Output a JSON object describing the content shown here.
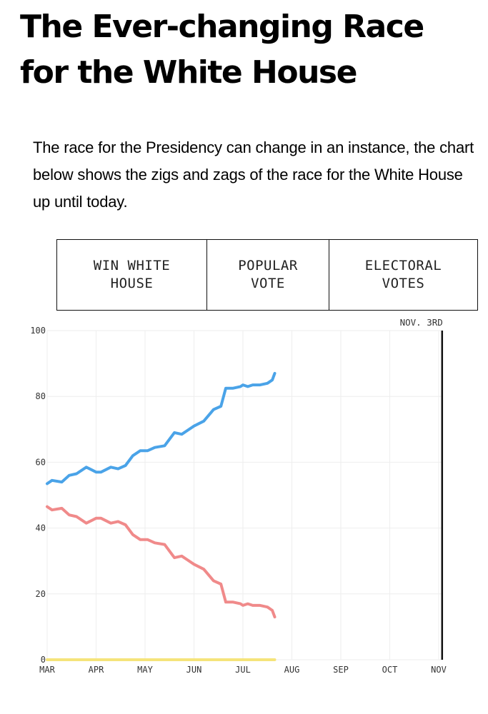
{
  "header": {
    "title": "The Ever-changing Race for the White House",
    "intro": "The race for the Presidency can change in an instance, the chart below shows the zigs and zags of the race for the White House up until today."
  },
  "tabs": [
    {
      "label": "WIN WHITE\nHOUSE"
    },
    {
      "label": "POPULAR\nVOTE"
    },
    {
      "label": "ELECTORAL\nVOTES"
    }
  ],
  "chart_data": {
    "type": "line",
    "title": "",
    "xlabel": "",
    "ylabel": "",
    "ylim": [
      0,
      100
    ],
    "y_ticks": [
      "0",
      "20",
      "40",
      "60",
      "80",
      "100"
    ],
    "x_ticks": [
      "MAR",
      "APR",
      "MAY",
      "JUN",
      "JUL",
      "AUG",
      "SEP",
      "OCT",
      "NOV"
    ],
    "x_range_months": [
      0,
      8
    ],
    "grid": true,
    "annotation": {
      "label": "NOV. 3RD",
      "x_month": 8.07
    },
    "colors": {
      "blue": "#4aa3e8",
      "red": "#f08a8a",
      "yellow": "#f5e47a",
      "grid": "#eeeeee",
      "marker": "#111111"
    },
    "series": [
      {
        "name": "blue",
        "x": [
          0,
          0.1,
          0.3,
          0.45,
          0.6,
          0.8,
          1.0,
          1.1,
          1.3,
          1.45,
          1.6,
          1.75,
          1.9,
          2.05,
          2.2,
          2.4,
          2.6,
          2.75,
          2.85,
          3.0,
          3.2,
          3.4,
          3.55,
          3.65,
          3.8,
          3.95,
          4.0,
          4.1,
          4.2,
          4.35,
          4.5,
          4.6,
          4.65
        ],
        "values": [
          53.5,
          54.5,
          54,
          56,
          56.5,
          58.5,
          57,
          57,
          58.5,
          58,
          59,
          62,
          63.5,
          63.5,
          64.5,
          65,
          69,
          68.5,
          69.5,
          71,
          72.5,
          76,
          77,
          82.5,
          82.5,
          83,
          83.5,
          83,
          83.5,
          83.5,
          84,
          85,
          87
        ]
      },
      {
        "name": "red",
        "x": [
          0,
          0.1,
          0.3,
          0.45,
          0.6,
          0.8,
          1.0,
          1.1,
          1.3,
          1.45,
          1.6,
          1.75,
          1.9,
          2.05,
          2.2,
          2.4,
          2.6,
          2.75,
          2.85,
          3.0,
          3.2,
          3.4,
          3.55,
          3.65,
          3.8,
          3.95,
          4.0,
          4.1,
          4.2,
          4.35,
          4.5,
          4.6,
          4.65
        ],
        "values": [
          46.5,
          45.5,
          46,
          44,
          43.5,
          41.5,
          43,
          43,
          41.5,
          42,
          41,
          38,
          36.5,
          36.5,
          35.5,
          35,
          31,
          31.5,
          30.5,
          29,
          27.5,
          24,
          23,
          17.5,
          17.5,
          17,
          16.5,
          17,
          16.5,
          16.5,
          16,
          15,
          13
        ]
      },
      {
        "name": "yellow",
        "x": [
          0,
          4.65
        ],
        "values": [
          0,
          0
        ]
      }
    ]
  }
}
